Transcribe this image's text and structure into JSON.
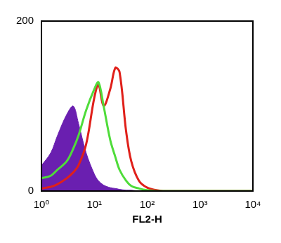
{
  "chart_data": {
    "type": "line",
    "x_label": "FL2-H",
    "log": "x",
    "grid": false,
    "xlim": [
      1,
      10000
    ],
    "xticks": [
      {
        "value": 1,
        "label": "10⁰"
      },
      {
        "value": 10,
        "label": "10¹"
      },
      {
        "value": 100,
        "label": "10²"
      },
      {
        "value": 1000,
        "label": "10³"
      },
      {
        "value": 10000,
        "label": "10⁴"
      }
    ],
    "ylim": [
      0,
      200
    ],
    "yticks": [
      0,
      200
    ],
    "x": [
      1,
      1.5,
      2,
      3,
      4,
      5,
      7,
      10,
      12,
      15,
      20,
      25,
      30,
      40,
      50,
      70,
      100,
      150,
      200,
      500,
      1000,
      10000
    ],
    "series": [
      {
        "type": "area",
        "color": "#6a1fb0",
        "marker": "none",
        "values": [
          30,
          45,
          65,
          90,
          100,
          80,
          45,
          20,
          12,
          7,
          4,
          3,
          2,
          1,
          1,
          0,
          0,
          0,
          0,
          0,
          0,
          0
        ]
      },
      {
        "type": "line",
        "color": "#4fdc3a",
        "marker": "none",
        "line_style": "solid",
        "values": [
          15,
          18,
          25,
          35,
          50,
          65,
          95,
          120,
          128,
          100,
          60,
          40,
          25,
          12,
          6,
          3,
          1,
          0,
          0,
          0,
          0,
          0
        ]
      },
      {
        "type": "line",
        "color": "#e0201a",
        "marker": "none",
        "line_style": "solid",
        "values": [
          3,
          5,
          8,
          15,
          22,
          30,
          55,
          110,
          125,
          100,
          120,
          145,
          140,
          70,
          35,
          12,
          4,
          1,
          0,
          0,
          0,
          0
        ]
      }
    ]
  }
}
